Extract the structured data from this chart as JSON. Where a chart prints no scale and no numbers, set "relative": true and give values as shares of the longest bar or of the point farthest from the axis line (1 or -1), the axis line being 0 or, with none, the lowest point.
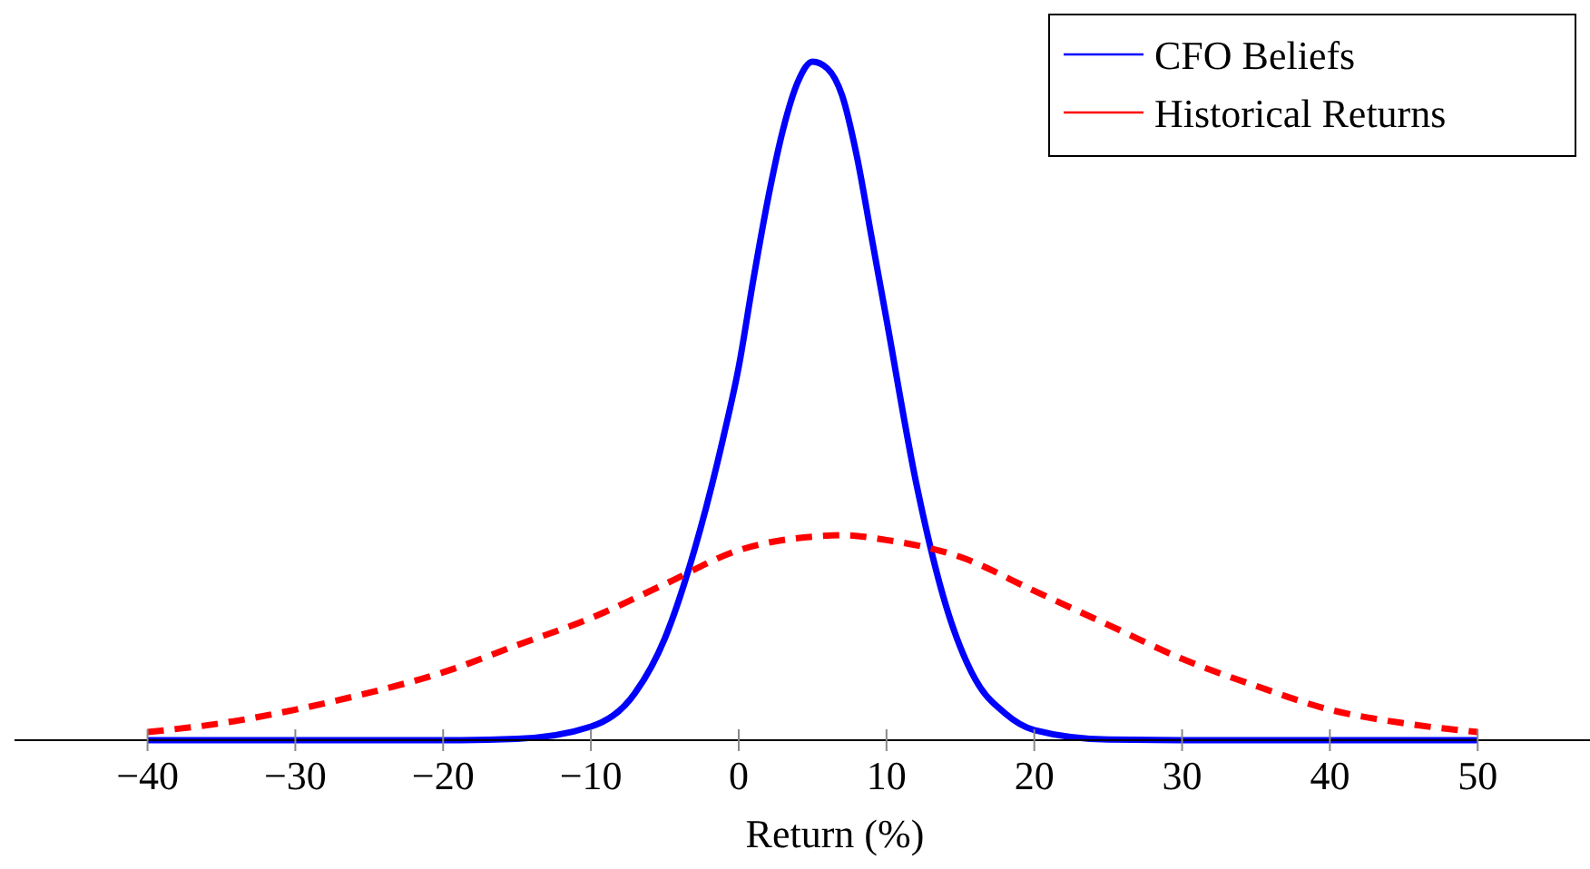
{
  "chart_data": {
    "type": "line",
    "relative": true,
    "xlabel": "Return (%)",
    "xlim": [
      -49,
      57.6
    ],
    "xticks": [
      {
        "value": -40,
        "label": "−40"
      },
      {
        "value": -30,
        "label": "−30"
      },
      {
        "value": -20,
        "label": "−20"
      },
      {
        "value": -10,
        "label": "−10"
      },
      0,
      10,
      20,
      30,
      40,
      50
    ],
    "legend": "top right",
    "series": [
      {
        "name": "CFO Beliefs",
        "color": "#0000ff",
        "line_style": "solid",
        "x": [
          -40,
          -20,
          -15,
          -10,
          -7,
          -5,
          -3,
          -1,
          0,
          1,
          2,
          3,
          4,
          5,
          6,
          7,
          8,
          9,
          10,
          12,
          14,
          16,
          18,
          20,
          25,
          30,
          50
        ],
        "values": [
          0,
          0,
          0.002,
          0.02,
          0.07,
          0.15,
          0.28,
          0.45,
          0.55,
          0.68,
          0.8,
          0.9,
          0.97,
          1,
          0.99,
          0.95,
          0.86,
          0.74,
          0.62,
          0.38,
          0.2,
          0.09,
          0.04,
          0.015,
          0.001,
          0,
          0
        ]
      },
      {
        "name": "Historical Returns",
        "color": "#ff0000",
        "line_style": "dashed",
        "x": [
          -40,
          -35,
          -30,
          -25,
          -20,
          -15,
          -10,
          -5,
          0,
          5,
          7,
          10,
          15,
          20,
          25,
          30,
          35,
          40,
          45,
          50
        ],
        "values": [
          0.012,
          0.025,
          0.045,
          0.07,
          0.1,
          0.14,
          0.18,
          0.23,
          0.28,
          0.3,
          0.302,
          0.295,
          0.27,
          0.22,
          0.17,
          0.12,
          0.08,
          0.045,
          0.025,
          0.012
        ]
      }
    ]
  }
}
